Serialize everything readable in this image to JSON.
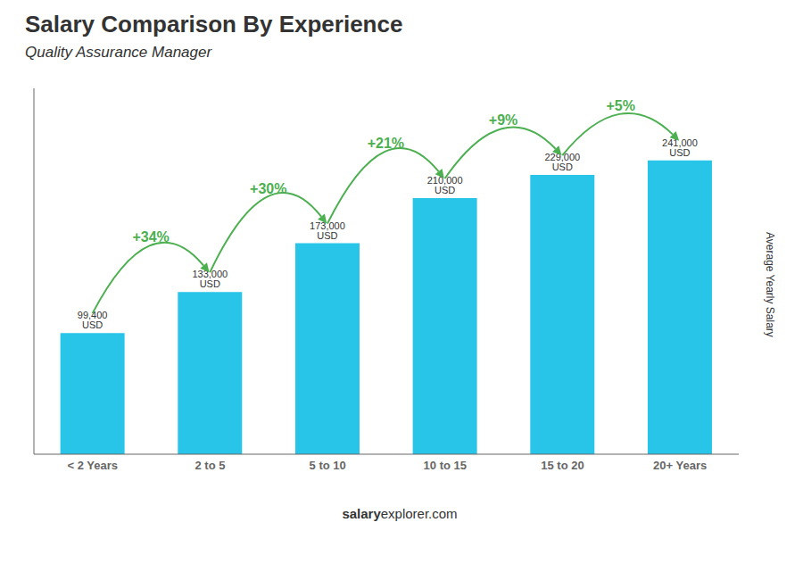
{
  "chart_data": {
    "type": "bar",
    "title": "Salary Comparison By Experience",
    "subtitle": "Quality Assurance Manager",
    "ylabel": "Average Yearly Salary",
    "categories": [
      "< 2 Years",
      "2 to 5",
      "5 to 10",
      "10 to 15",
      "15 to 20",
      "20+ Years"
    ],
    "values": [
      99400,
      133000,
      173000,
      210000,
      229000,
      241000
    ],
    "value_labels": [
      "99,400 USD",
      "133,000 USD",
      "173,000 USD",
      "210,000 USD",
      "229,000 USD",
      "241,000 USD"
    ],
    "data_labels": true,
    "color": "#29C5E8",
    "ylim": [
      0,
      300000
    ],
    "grid": false,
    "tick_labels": "x",
    "annotations": [
      {
        "text": "+34%",
        "from": "< 2 Years",
        "to": "2 to 5"
      },
      {
        "text": "+30%",
        "from": "2 to 5",
        "to": "5 to 10"
      },
      {
        "text": "+21%",
        "from": "5 to 10",
        "to": "10 to 15"
      },
      {
        "text": "+9%",
        "from": "10 to 15",
        "to": "15 to 20"
      },
      {
        "text": "+5%",
        "from": "15 to 20",
        "to": "20+ Years"
      }
    ],
    "footer_bold": "salary",
    "footer_normal": "explorer.com"
  }
}
